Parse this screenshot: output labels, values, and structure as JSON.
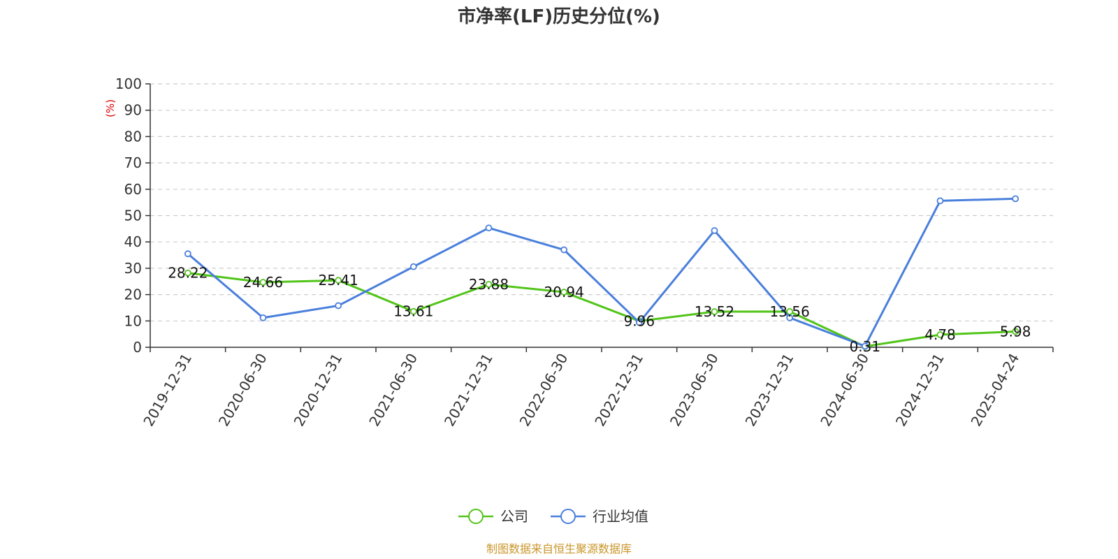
{
  "chart_data": {
    "type": "line",
    "title": "市净率(LF)历史分位(%)",
    "ylabel": "(%)",
    "ylim": [
      0,
      100
    ],
    "yticks": [
      0,
      10,
      20,
      30,
      40,
      50,
      60,
      70,
      80,
      90,
      100
    ],
    "grid": true,
    "legend_position": "bottom",
    "categories": [
      "2019-12-31",
      "2020-06-30",
      "2020-12-31",
      "2021-06-30",
      "2021-12-31",
      "2022-06-30",
      "2022-12-31",
      "2023-06-30",
      "2023-12-31",
      "2024-06-30",
      "2024-12-31",
      "2025-04-24"
    ],
    "series": [
      {
        "name": "公司",
        "color": "#52c41a",
        "values": [
          28.22,
          24.66,
          25.41,
          13.61,
          23.88,
          20.94,
          9.96,
          13.52,
          13.56,
          0.31,
          4.78,
          5.98
        ],
        "labels": [
          "28.22",
          "24.66",
          "25.41",
          "13.61",
          "23.88",
          "20.94",
          "9.96",
          "13.52",
          "13.56",
          "0.31",
          "4.78",
          "5.98"
        ]
      },
      {
        "name": "行业均值",
        "color": "#4a7fdc",
        "values": [
          35.5,
          11.2,
          15.8,
          30.6,
          45.3,
          37.0,
          9.4,
          44.3,
          11.2,
          0.4,
          55.6,
          56.4
        ]
      }
    ],
    "source": "制图数据来自恒生聚源数据库"
  }
}
